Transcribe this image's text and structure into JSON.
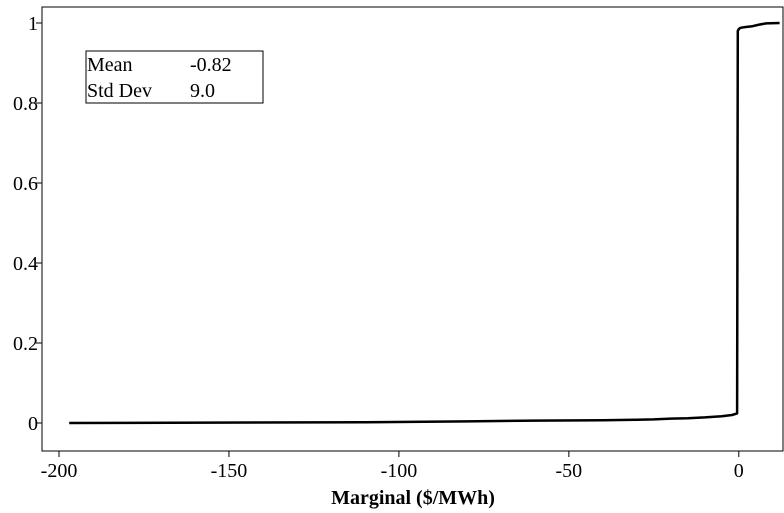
{
  "chart_data": {
    "type": "line",
    "title": "",
    "xlabel": "Marginal ($/MWh)",
    "ylabel": "",
    "xlim": [
      -205,
      13
    ],
    "ylim": [
      -0.07,
      1.04
    ],
    "xticks": [
      -200,
      -150,
      -100,
      -50,
      0
    ],
    "xtick_labels": [
      "-200",
      "-150",
      "-100",
      "-50",
      "0"
    ],
    "yticks": [
      0,
      0.2,
      0.4,
      0.6,
      0.8,
      1
    ],
    "ytick_labels": [
      "0",
      "0.2",
      "0.4",
      "0.6",
      "0.8",
      "1"
    ],
    "grid": false,
    "legend": "none",
    "series": [
      {
        "line_color": "#000000",
        "x": [
          -197,
          -155,
          -110,
          -80,
          -60,
          -40,
          -30,
          -25,
          -20,
          -15,
          -10,
          -5,
          -2,
          -0.5,
          -0.3,
          0,
          0.5,
          2,
          4,
          6,
          8,
          12
        ],
        "y": [
          0,
          0.001,
          0.002,
          0.004,
          0.006,
          0.007,
          0.008,
          0.009,
          0.011,
          0.012,
          0.014,
          0.017,
          0.02,
          0.024,
          0.98,
          0.985,
          0.988,
          0.99,
          0.992,
          0.996,
          0.999,
          1.0
        ]
      }
    ],
    "stats_box": {
      "location": "top-left",
      "rows": [
        {
          "label": "Mean",
          "value": "-0.82"
        },
        {
          "label": "Std Dev",
          "value": "9.0"
        }
      ]
    }
  }
}
